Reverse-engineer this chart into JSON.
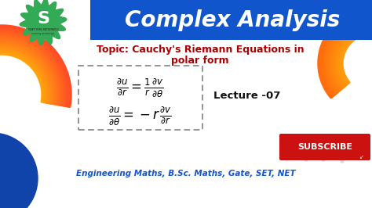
{
  "bg_color": "#ffffff",
  "header_bg": "#1155cc",
  "header_text": "Complex Analysis",
  "header_text_color": "#ffffff",
  "topic_line1": "Topic: Cauchy's Riemann Equations in",
  "topic_line2": "polar form",
  "topic_color": "#aa0000",
  "eq1_latex": "$\\dfrac{\\partial u}{\\partial r} = \\dfrac{1}{r}\\dfrac{\\partial v}{\\partial \\theta}$",
  "eq2_latex": "$\\dfrac{\\partial u}{\\partial \\theta} = -r\\,\\dfrac{\\partial v}{\\partial r}$",
  "lecture_text": "Lecture -07",
  "lecture_color": "#111111",
  "subscribe_text": "SUBSCRIBE",
  "subscribe_bg": "#cc1111",
  "subscribe_text_color": "#ffffff",
  "bottom_text": "Engineering Maths, B.Sc. Maths, Gate, SET, NET",
  "bottom_color": "#1155cc",
  "logo_color": "#33aa55",
  "logo_letter": "S",
  "logo_sub1": "SWATI THING MATHEMATICS",
  "logo_sub2": "Learning unstintingly",
  "orange_hi": "#f5a500",
  "orange_lo": "#f04010",
  "arc_right_hi": "#f5a500",
  "arc_right_lo": "#f06030",
  "blue_circle": "#1144aa",
  "fig_w": 4.74,
  "fig_h": 2.66,
  "dpi": 100
}
